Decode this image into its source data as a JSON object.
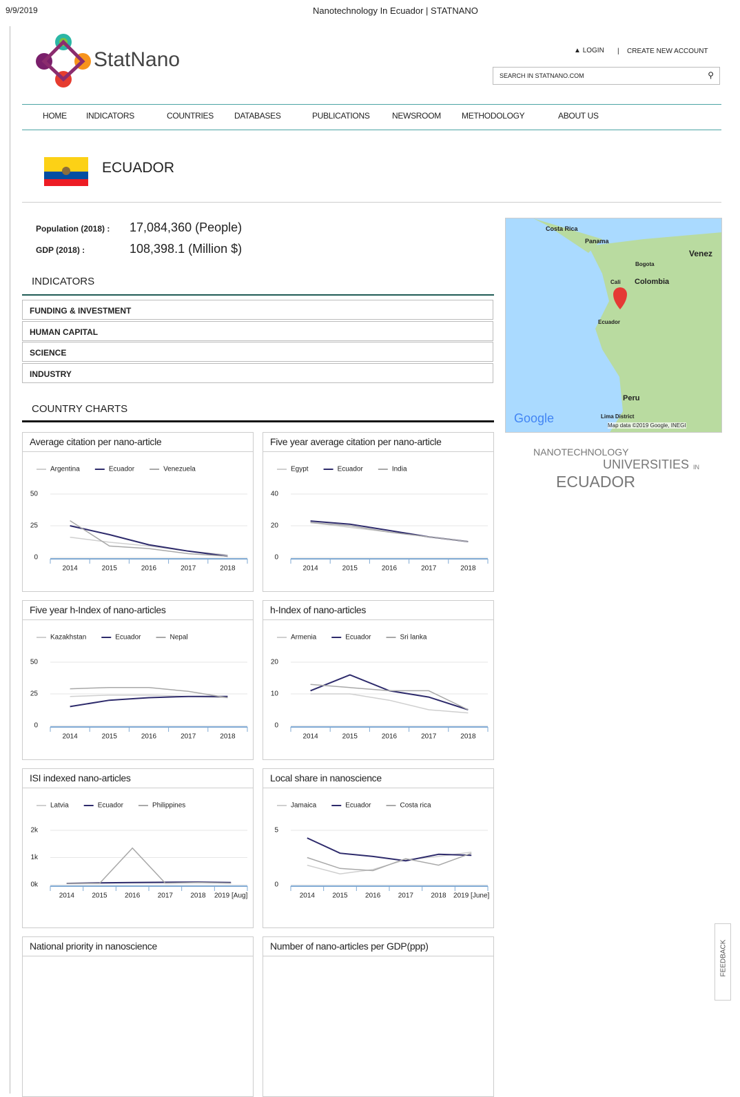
{
  "browser": {
    "date": "9/9/2019",
    "page_title": "Nanotechnology In Ecuador | STATNANO"
  },
  "header": {
    "logo": "StatNano",
    "login": "LOGIN",
    "separator": "|",
    "create_account": "CREATE NEW ACCOUNT",
    "search_placeholder": "SEARCH IN STATNANO.COM"
  },
  "nav": [
    "HOME",
    "INDICATORS",
    "COUNTRIES",
    "DATABASES",
    "PUBLICATIONS",
    "NEWSROOM",
    "METHODOLOGY",
    "ABOUT US"
  ],
  "country": {
    "name": "ECUADOR",
    "population_label": "Population (2018) :",
    "population_value": "17,084,360 (People)",
    "gdp_label": "GDP (2018) :",
    "gdp_value": "108,398.1 (Million $)"
  },
  "indicators": {
    "heading": "INDICATORS",
    "items": [
      "FUNDING & INVESTMENT",
      "HUMAN CAPITAL",
      "SCIENCE",
      "INDUSTRY"
    ]
  },
  "charts_heading": "COUNTRY CHARTS",
  "chart_data": [
    {
      "type": "line",
      "title": "Average citation per nano-article",
      "categories": [
        "2014",
        "2015",
        "2016",
        "2017",
        "2018"
      ],
      "series": [
        {
          "name": "Argentina",
          "color": "#cfcfcf",
          "values": [
            16,
            12,
            9,
            5,
            2
          ]
        },
        {
          "name": "Ecuador",
          "color": "#2d2a6b",
          "values": [
            25,
            18,
            10,
            5,
            1
          ]
        },
        {
          "name": "Venezuela",
          "color": "#a8a8a8",
          "values": [
            29,
            9,
            7,
            3,
            1
          ]
        }
      ],
      "ylim": [
        0,
        50
      ],
      "yticks": [
        0,
        25,
        50
      ],
      "grid": true
    },
    {
      "type": "line",
      "title": "Five year average citation per nano-article",
      "categories": [
        "2014",
        "2015",
        "2016",
        "2017",
        "2018"
      ],
      "series": [
        {
          "name": "Egypt",
          "color": "#cfcfcf",
          "values": [
            22,
            19,
            16,
            13,
            10
          ]
        },
        {
          "name": "Ecuador",
          "color": "#2d2a6b",
          "values": [
            23,
            21,
            17,
            13,
            10
          ]
        },
        {
          "name": "India",
          "color": "#a8a8a8",
          "values": [
            22,
            20,
            16,
            13,
            10
          ]
        }
      ],
      "ylim": [
        0,
        40
      ],
      "yticks": [
        0,
        20,
        40
      ],
      "grid": true
    },
    {
      "type": "line",
      "title": "Five year h-Index of nano-articles",
      "categories": [
        "2014",
        "2015",
        "2016",
        "2017",
        "2018"
      ],
      "series": [
        {
          "name": "Kazakhstan",
          "color": "#cfcfcf",
          "values": [
            23,
            24,
            24,
            23,
            22
          ]
        },
        {
          "name": "Ecuador",
          "color": "#2d2a6b",
          "values": [
            15,
            20,
            22,
            23,
            23
          ]
        },
        {
          "name": "Nepal",
          "color": "#a8a8a8",
          "values": [
            29,
            30,
            30,
            27,
            22
          ]
        }
      ],
      "ylim": [
        0,
        50
      ],
      "yticks": [
        0,
        25,
        50
      ],
      "grid": true
    },
    {
      "type": "line",
      "title": "h-Index of nano-articles",
      "categories": [
        "2014",
        "2015",
        "2016",
        "2017",
        "2018"
      ],
      "series": [
        {
          "name": "Armenia",
          "color": "#cfcfcf",
          "values": [
            10,
            10,
            8,
            5,
            4
          ]
        },
        {
          "name": "Ecuador",
          "color": "#2d2a6b",
          "values": [
            11,
            16,
            11,
            9,
            5
          ]
        },
        {
          "name": "Sri lanka",
          "color": "#a8a8a8",
          "values": [
            13,
            12,
            11,
            11,
            5
          ]
        }
      ],
      "ylim": [
        0,
        20
      ],
      "yticks": [
        0,
        10,
        20
      ],
      "grid": true
    },
    {
      "type": "line",
      "title": "ISI indexed nano-articles",
      "categories": [
        "2014",
        "2015",
        "2016",
        "2017",
        "2018",
        "2019 [Aug]"
      ],
      "series": [
        {
          "name": "Latvia",
          "color": "#cfcfcf",
          "values": [
            50,
            60,
            70,
            70,
            80,
            60
          ]
        },
        {
          "name": "Ecuador",
          "color": "#2d2a6b",
          "values": [
            50,
            70,
            80,
            90,
            100,
            80
          ]
        },
        {
          "name": "Philippines",
          "color": "#a8a8a8",
          "values": [
            50,
            50,
            1350,
            60,
            80,
            60
          ]
        }
      ],
      "ylim": [
        0,
        2000
      ],
      "yticks": [
        {
          "value": 0,
          "label": "0k"
        },
        {
          "value": 1000,
          "label": "1k"
        },
        {
          "value": 2000,
          "label": "2k"
        }
      ],
      "grid": true
    },
    {
      "type": "line",
      "title": "Local share in nanoscience",
      "categories": [
        "2014",
        "2015",
        "2016",
        "2017",
        "2018",
        "2019 [June]"
      ],
      "series": [
        {
          "name": "Jamaica",
          "color": "#cfcfcf",
          "values": [
            1.8,
            1.0,
            1.4,
            2.3,
            2.6,
            3.0
          ]
        },
        {
          "name": "Ecuador",
          "color": "#2d2a6b",
          "values": [
            4.3,
            2.9,
            2.6,
            2.2,
            2.8,
            2.7
          ]
        },
        {
          "name": "Costa rica",
          "color": "#a8a8a8",
          "values": [
            2.5,
            1.5,
            1.3,
            2.4,
            1.8,
            2.9
          ]
        }
      ],
      "ylim": [
        0,
        5
      ],
      "yticks": [
        0,
        5
      ],
      "grid": true
    }
  ],
  "empty_charts": [
    {
      "title": "National priority in nanoscience"
    },
    {
      "title": "Number of nano-articles per GDP(ppp)"
    }
  ],
  "map": {
    "labels": [
      "Costa Rica",
      "Panama",
      "Venez",
      "Bogota",
      "Cali",
      "Colombia",
      "Ecuador",
      "Peru",
      "Lima District"
    ],
    "google": "Google",
    "attribution": "Map data ©2019 Google, INEGI"
  },
  "universities": {
    "line1": "NANOTECHNOLOGY",
    "line2": "UNIVERSITIES",
    "in": "IN",
    "country": "ECUADOR"
  },
  "feedback": "FEEDBACK"
}
